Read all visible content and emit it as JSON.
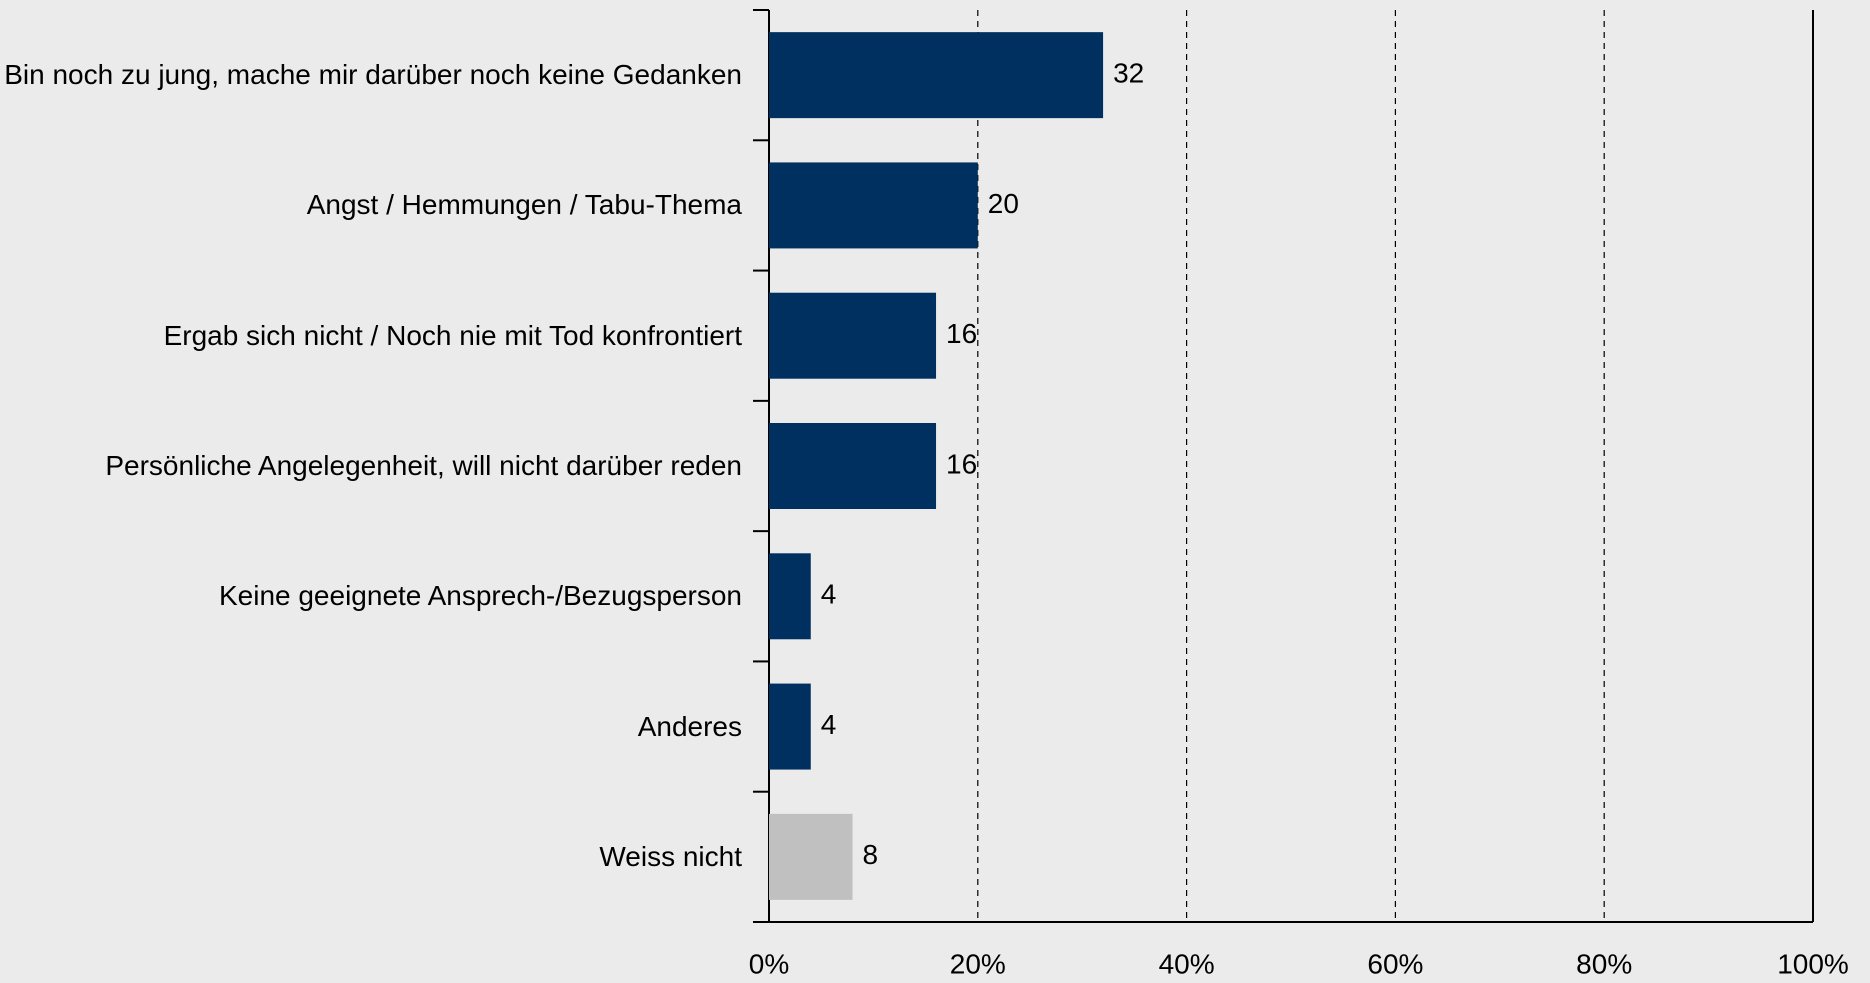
{
  "chart_data": {
    "type": "bar",
    "orientation": "horizontal",
    "categories": [
      "Bin noch zu jung, mache mir darüber noch keine Gedanken",
      "Angst / Hemmungen / Tabu-Thema",
      "Ergab sich nicht / Noch nie mit Tod konfrontiert",
      "Persönliche Angelegenheit, will nicht darüber reden",
      "Keine geeignete Ansprech-/Bezugsperson",
      "Anderes",
      "Weiss nicht"
    ],
    "values": [
      32,
      20,
      16,
      16,
      4,
      4,
      8
    ],
    "colors": [
      "#00305f",
      "#00305f",
      "#00305f",
      "#00305f",
      "#00305f",
      "#00305f",
      "#c0c0c0"
    ],
    "xlim": [
      0,
      100
    ],
    "xticks": [
      {
        "value": 0,
        "label": "0%"
      },
      {
        "value": 20,
        "label": "20%"
      },
      {
        "value": 40,
        "label": "40%"
      },
      {
        "value": 60,
        "label": "60%"
      },
      {
        "value": 80,
        "label": "80%"
      },
      {
        "value": 100,
        "label": "100%"
      }
    ],
    "grid": true
  }
}
